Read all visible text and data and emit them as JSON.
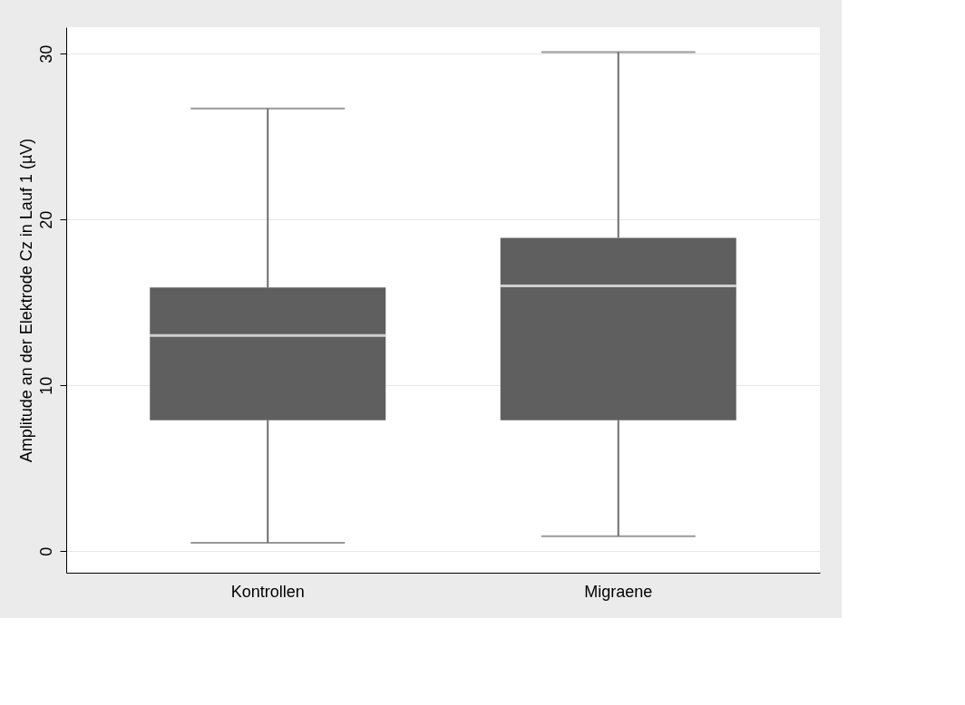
{
  "chart_data": {
    "type": "box",
    "ylabel": "Amplitude an der Elektrode Cz in Lauf 1 (µV)",
    "categories": [
      "Kontrollen",
      "Migraene"
    ],
    "boxes": [
      {
        "low": 0.5,
        "q1": 7.9,
        "median": 13.0,
        "q3": 15.9,
        "high": 26.7
      },
      {
        "low": 0.9,
        "q1": 7.9,
        "median": 16.0,
        "q3": 18.9,
        "high": 30.1
      }
    ],
    "color": "#5f5f5f",
    "ylim": [
      -1.3,
      31.6
    ],
    "yticks": [
      0,
      10,
      20,
      30
    ],
    "grid": "y"
  }
}
